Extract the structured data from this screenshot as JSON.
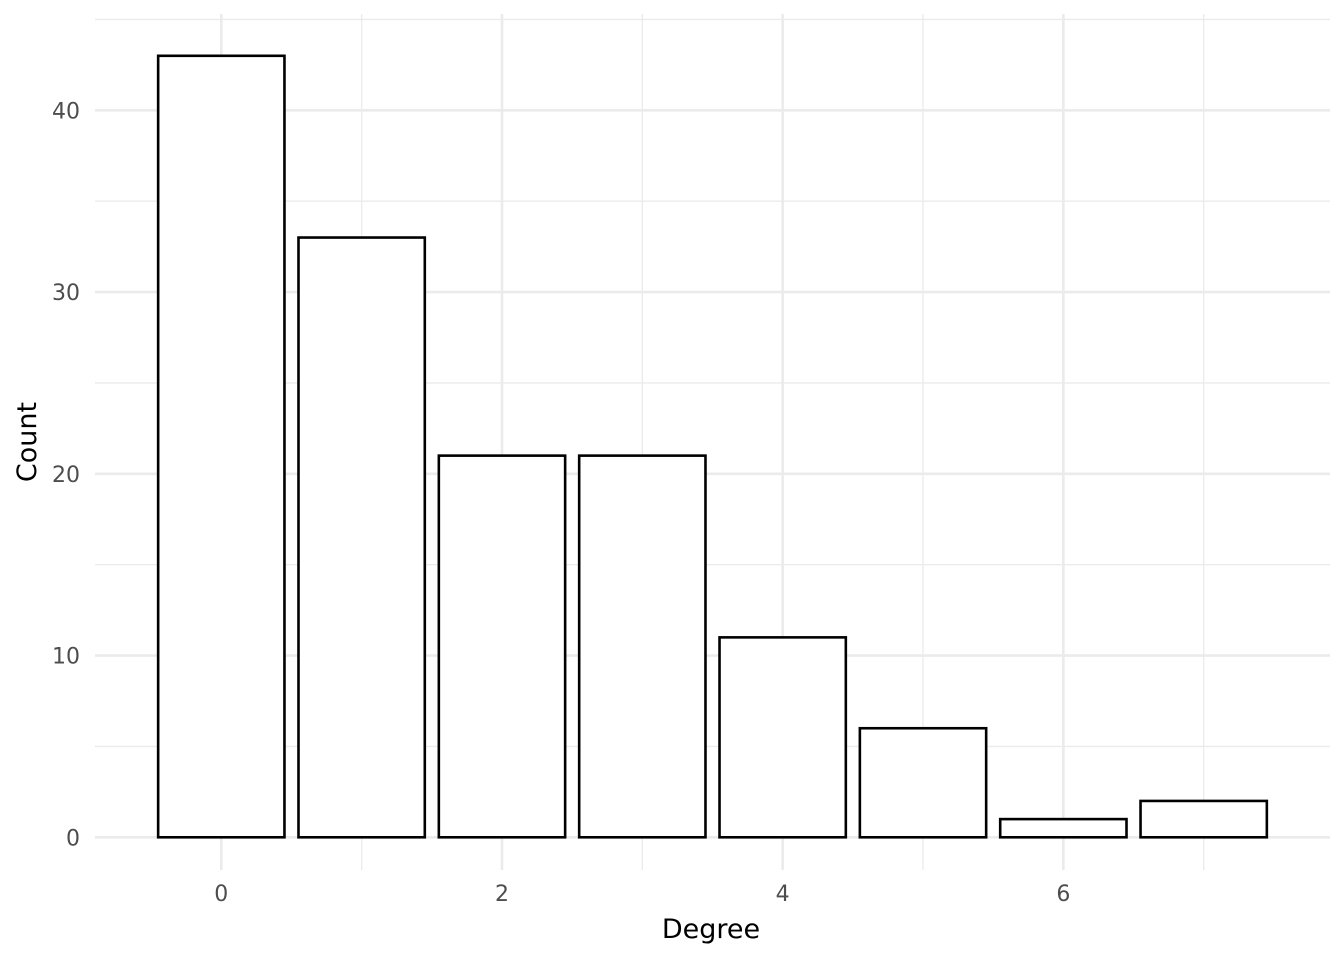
{
  "chart_data": {
    "type": "bar",
    "title": "",
    "xlabel": "Degree",
    "ylabel": "Count",
    "categories": [
      0,
      1,
      2,
      3,
      4,
      5,
      6,
      7
    ],
    "values": [
      43,
      33,
      21,
      21,
      11,
      6,
      1,
      2
    ],
    "xlim": [
      -0.9,
      7.9
    ],
    "ylim": [
      -1.8,
      45.3
    ],
    "x_ticks": [
      "0",
      "2",
      "4",
      "6"
    ],
    "y_ticks": [
      "0",
      "10",
      "20",
      "30",
      "40"
    ],
    "grid": true,
    "legend": "none",
    "colors": {
      "bar_fill": "#ffffff",
      "bar_stroke": "#000000",
      "grid": "#ebebeb",
      "tick_text": "#4d4d4d"
    }
  }
}
